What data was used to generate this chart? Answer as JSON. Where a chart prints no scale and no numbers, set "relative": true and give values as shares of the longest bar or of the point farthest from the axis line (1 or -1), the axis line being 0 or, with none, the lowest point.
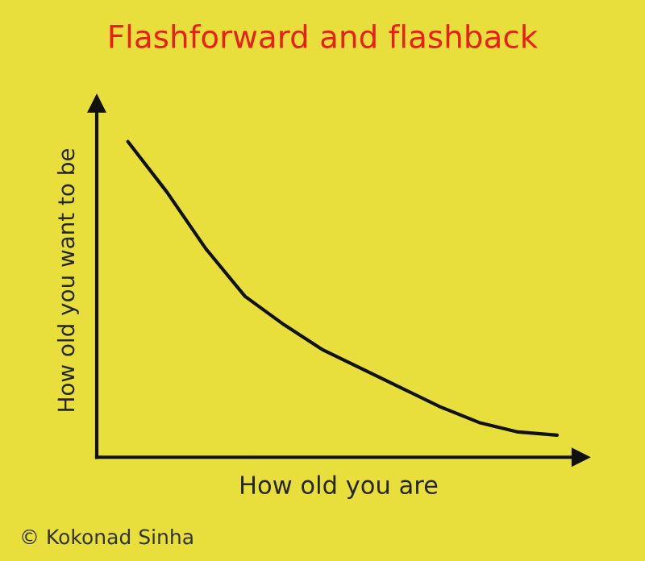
{
  "chart_data": {
    "type": "line",
    "title": "Flashforward and flashback",
    "xlabel": "How old you are",
    "ylabel": "How old you want to be",
    "relative": true,
    "categories": [
      null,
      null,
      null,
      null,
      null,
      null,
      null,
      null,
      null,
      null,
      null,
      null
    ],
    "series": [
      {
        "color": "#111111",
        "values": [
          1,
          0.84,
          0.66,
          0.51,
          0.42,
          0.34,
          0.28,
          0.22,
          0.16,
          0.11,
          0.08,
          0.07
        ]
      }
    ],
    "annotations": [
      "© Kokonad Sinha"
    ],
    "tick_labels": false,
    "grid": false,
    "legend": false,
    "marker": "none",
    "line_style": "solid"
  }
}
